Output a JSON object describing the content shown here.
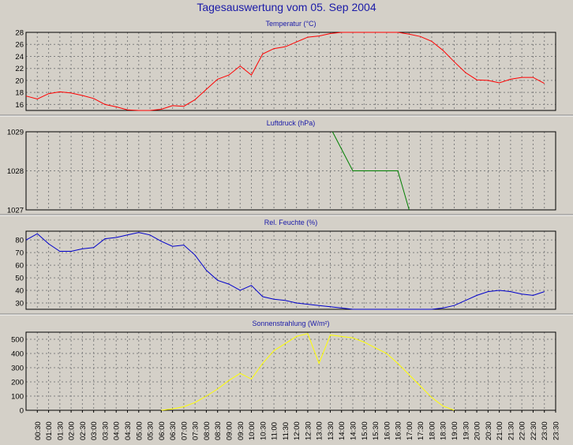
{
  "title": "Tagesauswertung vom 05. Sep 2004",
  "colors": {
    "background": "#d4d0c8",
    "plot_area": "#d4d0c8",
    "grid": "#7f7f7f",
    "title": "#1a1aa8",
    "temperature": "#ff0000",
    "pressure": "#007f00",
    "humidity": "#0000cc",
    "radiation": "#ffff00"
  },
  "chart_data": [
    {
      "type": "line",
      "title": "Temperatur (°C)",
      "ylim": [
        15,
        28
      ],
      "yticks": [
        16,
        18,
        20,
        22,
        24,
        26,
        28
      ],
      "grid": true,
      "series": [
        {
          "x": [
            0.0,
            0.5,
            1.0,
            1.5,
            2.0,
            2.5,
            3.0,
            3.5,
            4.0,
            4.5,
            5.0,
            5.5,
            6.0,
            6.5,
            7.0,
            7.5,
            8.0,
            8.5,
            9.0,
            9.5,
            10.0,
            10.5,
            11.0,
            11.5,
            12.0,
            12.5,
            13.0,
            13.5,
            14.0,
            14.5,
            15.0,
            15.5,
            16.0,
            16.5,
            17.0,
            17.5,
            18.0,
            18.5,
            19.0,
            19.5,
            20.0,
            20.5,
            21.0,
            21.5,
            22.0,
            22.5,
            23.0
          ],
          "values": [
            17.4,
            16.9,
            17.8,
            18.1,
            17.9,
            17.5,
            17.0,
            16.0,
            15.6,
            15.1,
            14.8,
            14.6,
            15.2,
            15.8,
            15.7,
            16.8,
            18.5,
            20.2,
            20.9,
            22.4,
            20.9,
            24.4,
            25.3,
            25.6,
            26.4,
            27.2,
            27.4,
            27.8,
            28.1,
            28.5,
            28.4,
            28.3,
            28.2,
            28.0,
            27.7,
            27.3,
            26.5,
            25.0,
            23.1,
            21.3,
            20.1,
            20.0,
            19.6,
            20.2,
            20.5,
            20.5,
            19.5
          ]
        }
      ]
    },
    {
      "type": "line",
      "title": "Luftdruck (hPa)",
      "ylim": [
        1027,
        1029
      ],
      "yticks": [
        1027,
        1028,
        1029
      ],
      "grid": true,
      "series": [
        {
          "x": [
            13.6,
            14.5,
            15.0,
            16.0,
            16.5,
            17.0
          ],
          "values": [
            1029.0,
            1028.0,
            1028.0,
            1028.0,
            1028.0,
            1027.0
          ]
        }
      ]
    },
    {
      "type": "line",
      "title": "Rel. Feuchte (%)",
      "ylim": [
        25,
        87
      ],
      "yticks": [
        30,
        40,
        50,
        60,
        70,
        80
      ],
      "grid": true,
      "series": [
        {
          "x": [
            0.0,
            0.5,
            1.0,
            1.5,
            2.0,
            2.5,
            3.0,
            3.5,
            4.0,
            4.5,
            5.0,
            5.5,
            6.0,
            6.5,
            7.0,
            7.5,
            8.0,
            8.5,
            9.0,
            9.5,
            10.0,
            10.5,
            11.0,
            11.5,
            12.0,
            12.5,
            13.0,
            13.5,
            14.0,
            14.5,
            15.0,
            15.5,
            16.0,
            16.5,
            17.0,
            17.5,
            18.0,
            18.5,
            19.0,
            19.5,
            20.0,
            20.5,
            21.0,
            21.5,
            22.0,
            22.5,
            23.0
          ],
          "values": [
            80,
            85,
            77,
            71,
            71,
            73,
            74,
            81,
            82,
            84,
            86,
            84,
            79,
            75,
            76,
            68,
            56,
            48,
            45,
            40,
            44,
            35,
            33,
            32,
            30,
            29,
            28,
            27,
            26,
            25,
            24,
            24,
            23,
            23,
            23,
            24,
            25,
            26,
            28,
            32,
            36,
            39,
            40,
            39,
            37,
            36,
            39
          ]
        }
      ]
    },
    {
      "type": "line",
      "title": "Sonnenstrahlung (W/m²)",
      "ylim": [
        0,
        550
      ],
      "yticks": [
        0,
        100,
        200,
        300,
        400,
        500
      ],
      "grid": true,
      "series": [
        {
          "x": [
            6.0,
            6.5,
            7.0,
            7.5,
            8.0,
            8.5,
            9.0,
            9.5,
            10.0,
            10.5,
            11.0,
            11.5,
            12.0,
            12.5,
            13.0,
            13.5,
            14.0,
            14.5,
            15.0,
            15.5,
            16.0,
            16.5,
            17.0,
            17.5,
            18.0,
            18.5,
            19.0
          ],
          "values": [
            0,
            10,
            25,
            55,
            100,
            150,
            210,
            260,
            220,
            330,
            420,
            470,
            520,
            540,
            330,
            530,
            520,
            510,
            480,
            440,
            400,
            330,
            250,
            170,
            90,
            30,
            0
          ]
        }
      ]
    }
  ],
  "x_axis": {
    "tick_labels": [
      "00:30",
      "01:00",
      "01:30",
      "02:00",
      "02:30",
      "03:00",
      "03:30",
      "04:00",
      "04:30",
      "05:00",
      "05:30",
      "06:00",
      "06:30",
      "07:00",
      "07:30",
      "08:00",
      "08:30",
      "09:00",
      "09:30",
      "10:00",
      "10:30",
      "11:00",
      "11:30",
      "12:00",
      "12:30",
      "13:00",
      "13:30",
      "14:00",
      "14:30",
      "15:00",
      "15:30",
      "16:00",
      "16:30",
      "17:00",
      "17:30",
      "18:00",
      "18:30",
      "19:00",
      "19:30",
      "20:00",
      "20:30",
      "21:00",
      "21:30",
      "22:00",
      "22:30",
      "23:00",
      "23:30"
    ]
  }
}
